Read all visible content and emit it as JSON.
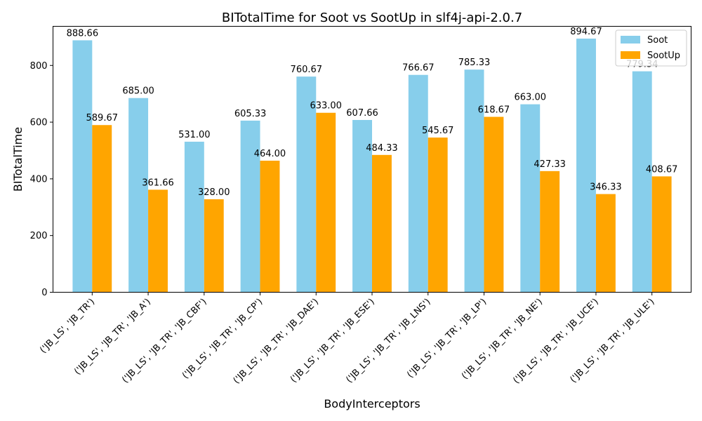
{
  "chart_data": {
    "type": "bar",
    "title": "BITotalTime for Soot vs SootUp in slf4j-api-2.0.7",
    "xlabel": "BodyInterceptors",
    "ylabel": "BITotalTime",
    "ylim": [
      0,
      938
    ],
    "yticks": [
      0,
      200,
      400,
      600,
      800
    ],
    "grid": false,
    "legend_position": "top-right",
    "categories": [
      "('JB_LS', 'JB_TR')",
      "('JB_LS', 'JB_TR', 'JB_A')",
      "('JB_LS', 'JB_TR', 'JB_CBF')",
      "('JB_LS', 'JB_TR', 'JB_CP')",
      "('JB_LS', 'JB_TR', 'JB_DAE')",
      "('JB_LS', 'JB_TR', 'JB_ESE')",
      "('JB_LS', 'JB_TR', 'JB_LNS')",
      "('JB_LS', 'JB_TR', 'JB_LP')",
      "('JB_LS', 'JB_TR', 'JB_NE')",
      "('JB_LS', 'JB_TR', 'JB_UCE')",
      "('JB_LS', 'JB_TR', 'JB_ULE')"
    ],
    "series": [
      {
        "name": "Soot",
        "color": "#87ceeb",
        "values": [
          888.66,
          685.0,
          531.0,
          605.33,
          760.67,
          607.66,
          766.67,
          785.33,
          663.0,
          894.67,
          779.34
        ],
        "labels": [
          "888.66",
          "685.00",
          "531.00",
          "605.33",
          "760.67",
          "607.66",
          "766.67",
          "785.33",
          "663.00",
          "894.67",
          "779.34"
        ]
      },
      {
        "name": "SootUp",
        "color": "#ffa500",
        "values": [
          589.67,
          361.66,
          328.0,
          464.0,
          633.0,
          484.33,
          545.67,
          618.67,
          427.33,
          346.33,
          408.67
        ],
        "labels": [
          "589.67",
          "361.66",
          "328.00",
          "464.00",
          "633.00",
          "484.33",
          "545.67",
          "618.67",
          "427.33",
          "346.33",
          "408.67"
        ]
      }
    ]
  }
}
